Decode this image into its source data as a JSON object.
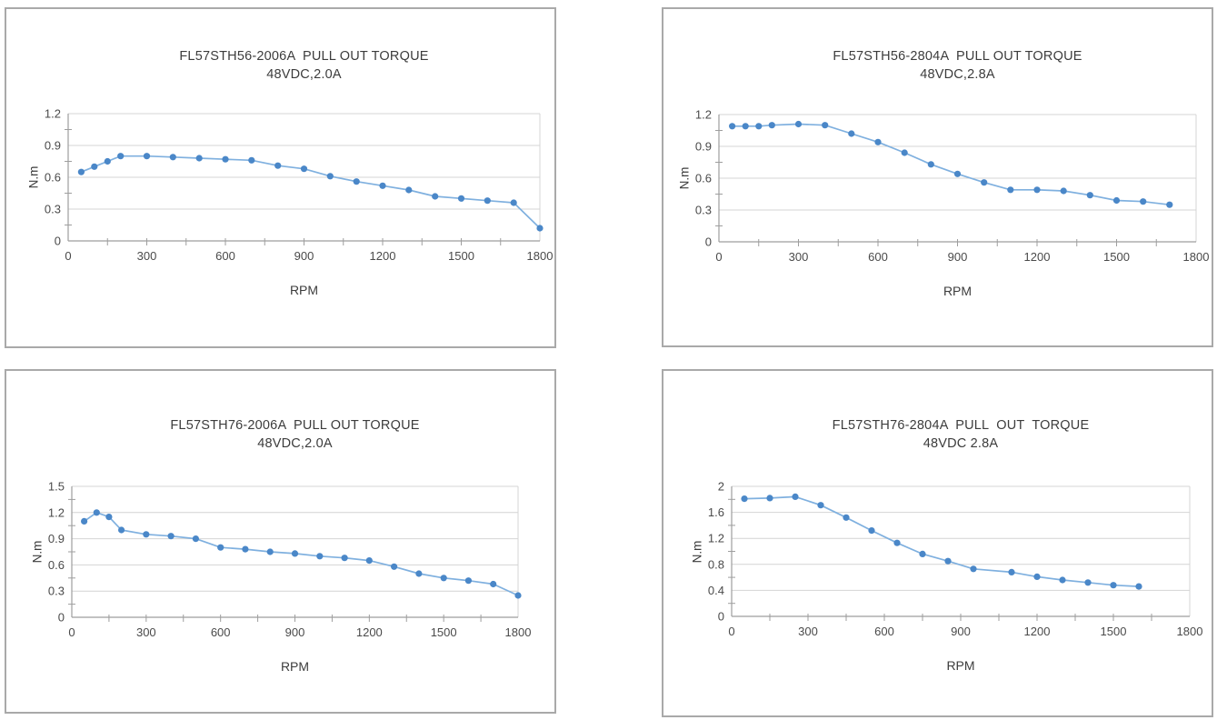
{
  "page": {
    "background": "#ffffff"
  },
  "styles": {
    "line_color": "#7FB0DF",
    "marker_color": "#4A87C8",
    "grid_color": "#D4D4D4",
    "axis_color": "#9E9E9E",
    "tick_text_color": "#4A4A4A",
    "title_text_color": "#3C3C3C",
    "panel_border_color": "#A9A9A9"
  },
  "chart_data": [
    {
      "type": "line",
      "title": "FL57STH56-2006A  PULL OUT TORQUE",
      "subtitle": "48VDC,2.0A",
      "xlabel": "RPM",
      "ylabel": "N.m",
      "xlim": [
        0,
        1800
      ],
      "ylim": [
        0,
        1.2
      ],
      "x_tick_labels": [
        "0",
        "300",
        "600",
        "900",
        "1200",
        "1500",
        "1800"
      ],
      "y_tick_labels": [
        "0",
        "0.3",
        "0.6",
        "0.9",
        "1.2"
      ],
      "x_minor_step": 150,
      "y_minor_step": 0.15,
      "grid": "horizontal",
      "legend": "none",
      "x": [
        50,
        100,
        150,
        200,
        300,
        400,
        500,
        600,
        700,
        800,
        900,
        1000,
        1100,
        1200,
        1300,
        1400,
        1500,
        1600,
        1700,
        1800
      ],
      "y": [
        0.65,
        0.7,
        0.75,
        0.8,
        0.8,
        0.79,
        0.78,
        0.77,
        0.76,
        0.71,
        0.68,
        0.61,
        0.56,
        0.52,
        0.48,
        0.42,
        0.4,
        0.38,
        0.36,
        0.12
      ]
    },
    {
      "type": "line",
      "title": "FL57STH56-2804A  PULL OUT TORQUE",
      "subtitle": "48VDC,2.8A",
      "xlabel": "RPM",
      "ylabel": "N.m",
      "xlim": [
        0,
        1800
      ],
      "ylim": [
        0,
        1.2
      ],
      "x_tick_labels": [
        "0",
        "300",
        "600",
        "900",
        "1200",
        "1500",
        "1800"
      ],
      "y_tick_labels": [
        "0",
        "0.3",
        "0.6",
        "0.9",
        "1.2"
      ],
      "x_minor_step": 150,
      "y_minor_step": 0.15,
      "grid": "horizontal",
      "legend": "none",
      "x": [
        50,
        100,
        150,
        200,
        300,
        400,
        500,
        600,
        700,
        800,
        900,
        1000,
        1100,
        1200,
        1300,
        1400,
        1500,
        1600,
        1700
      ],
      "y": [
        1.09,
        1.09,
        1.09,
        1.1,
        1.11,
        1.1,
        1.02,
        0.94,
        0.84,
        0.73,
        0.64,
        0.56,
        0.49,
        0.49,
        0.48,
        0.44,
        0.39,
        0.38,
        0.35
      ]
    },
    {
      "type": "line",
      "title": "FL57STH76-2006A  PULL OUT TORQUE",
      "subtitle": "48VDC,2.0A",
      "xlabel": "RPM",
      "ylabel": "N.m",
      "xlim": [
        0,
        1800
      ],
      "ylim": [
        0,
        1.5
      ],
      "x_tick_labels": [
        "0",
        "300",
        "600",
        "900",
        "1200",
        "1500",
        "1800"
      ],
      "y_tick_labels": [
        "0",
        "0.3",
        "0.6",
        "0.9",
        "1.2",
        "1.5"
      ],
      "x_minor_step": 150,
      "y_minor_step": 0.15,
      "grid": "horizontal",
      "legend": "none",
      "x": [
        50,
        100,
        150,
        200,
        300,
        400,
        500,
        600,
        700,
        800,
        900,
        1000,
        1100,
        1200,
        1300,
        1400,
        1500,
        1600,
        1700,
        1800
      ],
      "y": [
        1.1,
        1.2,
        1.15,
        1.0,
        0.95,
        0.93,
        0.9,
        0.8,
        0.78,
        0.75,
        0.73,
        0.7,
        0.68,
        0.65,
        0.58,
        0.5,
        0.45,
        0.42,
        0.38,
        0.25
      ]
    },
    {
      "type": "line",
      "title": "FL57STH76-2804A  PULL  OUT  TORQUE",
      "subtitle": "48VDC 2.8A",
      "xlabel": "RPM",
      "ylabel": "N.m",
      "xlim": [
        0,
        1800
      ],
      "ylim": [
        0,
        2
      ],
      "x_tick_labels": [
        "0",
        "300",
        "600",
        "900",
        "1200",
        "1500",
        "1800"
      ],
      "y_tick_labels": [
        "0",
        "0.4",
        "0.8",
        "1.2",
        "1.6",
        "2"
      ],
      "x_minor_step": 150,
      "y_minor_step": 0.2,
      "grid": "horizontal",
      "legend": "none",
      "x": [
        50,
        150,
        250,
        350,
        450,
        550,
        650,
        750,
        850,
        950,
        1100,
        1200,
        1300,
        1400,
        1500,
        1600
      ],
      "y": [
        1.81,
        1.82,
        1.84,
        1.71,
        1.52,
        1.32,
        1.13,
        0.96,
        0.85,
        0.73,
        0.68,
        0.61,
        0.56,
        0.52,
        0.48,
        0.46
      ]
    }
  ]
}
